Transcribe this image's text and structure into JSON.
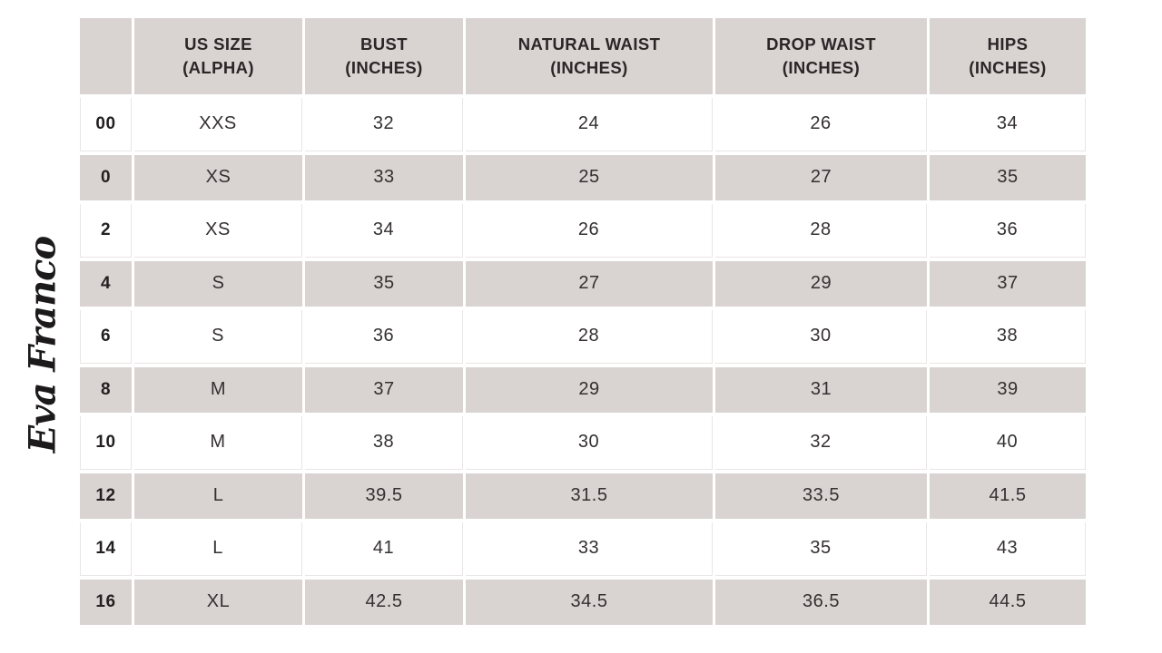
{
  "brand": {
    "logo_text": "Eva Franco"
  },
  "colors": {
    "band_bg": "#d9d4d2",
    "grid_line": "#e9e6e5",
    "text_color": "#2b2728",
    "page_bg": "#ffffff"
  },
  "chart_data": {
    "type": "table",
    "columns": [
      {
        "key": "us-size",
        "line1": "",
        "line2": ""
      },
      {
        "key": "alpha-size",
        "line1": "US SIZE",
        "line2": "(ALPHA)"
      },
      {
        "key": "bust",
        "line1": "BUST",
        "line2": "(INCHES)"
      },
      {
        "key": "natural-waist",
        "line1": "NATURAL WAIST",
        "line2": "(INCHES)"
      },
      {
        "key": "drop-waist",
        "line1": "DROP WAIST",
        "line2": "(INCHES)"
      },
      {
        "key": "hips",
        "line1": "HIPS",
        "line2": "(INCHES)"
      }
    ],
    "rows": [
      [
        "00",
        "XXS",
        "32",
        "24",
        "26",
        "34"
      ],
      [
        "0",
        "XS",
        "33",
        "25",
        "27",
        "35"
      ],
      [
        "2",
        "XS",
        "34",
        "26",
        "28",
        "36"
      ],
      [
        "4",
        "S",
        "35",
        "27",
        "29",
        "37"
      ],
      [
        "6",
        "S",
        "36",
        "28",
        "30",
        "38"
      ],
      [
        "8",
        "M",
        "37",
        "29",
        "31",
        "39"
      ],
      [
        "10",
        "M",
        "38",
        "30",
        "32",
        "40"
      ],
      [
        "12",
        "L",
        "39.5",
        "31.5",
        "33.5",
        "41.5"
      ],
      [
        "14",
        "L",
        "41",
        "33",
        "35",
        "43"
      ],
      [
        "16",
        "XL",
        "42.5",
        "34.5",
        "36.5",
        "44.5"
      ]
    ]
  }
}
